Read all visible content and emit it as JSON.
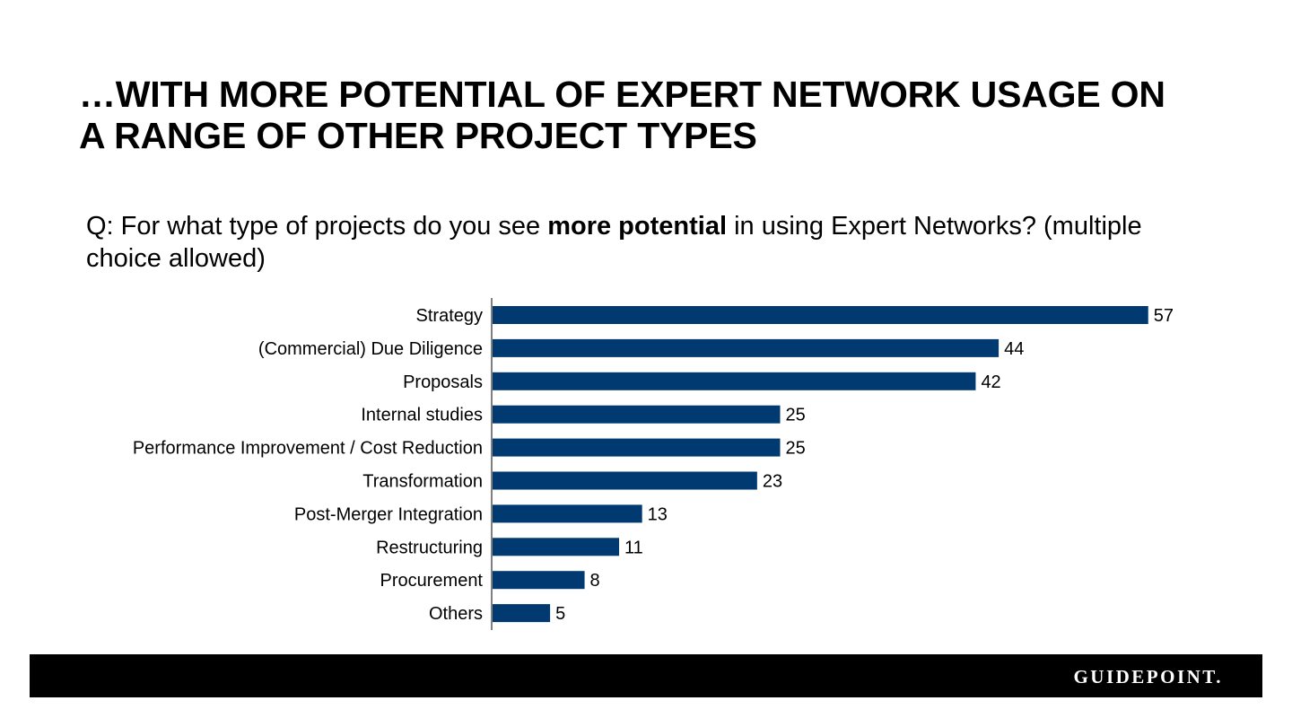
{
  "slide": {
    "title_line1": "…WITH MORE POTENTIAL OF EXPERT NETWORK USAGE ON",
    "title_line2": "A RANGE OF OTHER PROJECT TYPES",
    "question_pre": "Q: For what type of projects do you see ",
    "question_bold": "more potential",
    "question_post": " in using Expert Networks? (multiple choice allowed)"
  },
  "footer": {
    "brand": "GUIDEPOINT."
  },
  "colors": {
    "bar": "#003a70",
    "footer_bg": "#000000",
    "brand": "#ffffff"
  },
  "chart_data": {
    "type": "bar",
    "orientation": "horizontal",
    "categories": [
      "Strategy",
      "(Commercial) Due Diligence",
      "Proposals",
      "Internal studies",
      "Performance Improvement / Cost Reduction",
      "Transformation",
      "Post-Merger Integration",
      "Restructuring",
      "Procurement",
      "Others"
    ],
    "values": [
      57,
      44,
      42,
      25,
      25,
      23,
      13,
      11,
      8,
      5
    ],
    "xlim": [
      0,
      60
    ],
    "grid": false,
    "legend": "none"
  }
}
